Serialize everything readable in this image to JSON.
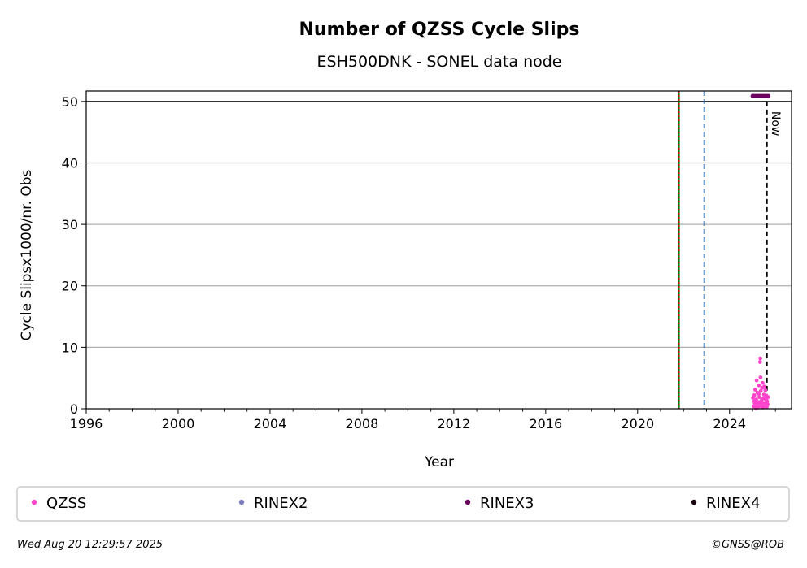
{
  "chart_data": {
    "type": "scatter",
    "title": "Number of QZSS Cycle Slips",
    "subtitle": "ESH500DNK - SONEL data node",
    "xlabel": "Year",
    "ylabel": "Cycle Slipsx1000/nr. Obs",
    "xlim": [
      1996,
      2026.7
    ],
    "ylim": [
      0,
      51.7
    ],
    "x_ticks": [
      1996,
      2000,
      2004,
      2008,
      2012,
      2016,
      2020,
      2024
    ],
    "y_ticks": [
      0,
      10,
      20,
      30,
      40,
      50
    ],
    "grid": "horizontal",
    "ceiling_line": 50,
    "vertical_lines": [
      {
        "x": 2021.8,
        "color": "#008000",
        "style": "solid"
      },
      {
        "x": 2021.8,
        "color": "#cc0000",
        "style": "dotted"
      },
      {
        "x": 2022.9,
        "color": "#1f5fa0",
        "style": "dashed"
      },
      {
        "x": 2025.63,
        "color": "#000000",
        "style": "dashed",
        "label": "Now"
      }
    ],
    "series": [
      {
        "name": "QZSS",
        "color": "#ff44cc",
        "points": [
          [
            2025.02,
            1.8
          ],
          [
            2025.05,
            0.4
          ],
          [
            2025.08,
            2.2
          ],
          [
            2025.1,
            0.9
          ],
          [
            2025.12,
            3.1
          ],
          [
            2025.14,
            0.3
          ],
          [
            2025.16,
            1.5
          ],
          [
            2025.18,
            4.6
          ],
          [
            2025.2,
            0.7
          ],
          [
            2025.22,
            2.6
          ],
          [
            2025.24,
            1.1
          ],
          [
            2025.26,
            0.2
          ],
          [
            2025.28,
            3.8
          ],
          [
            2025.3,
            1.9
          ],
          [
            2025.32,
            0.5
          ],
          [
            2025.33,
            7.6
          ],
          [
            2025.34,
            8.2
          ],
          [
            2025.35,
            5.1
          ],
          [
            2025.36,
            2.9
          ],
          [
            2025.38,
            1.3
          ],
          [
            2025.4,
            0.6
          ],
          [
            2025.42,
            3.4
          ],
          [
            2025.44,
            4.2
          ],
          [
            2025.46,
            1.7
          ],
          [
            2025.48,
            0.8
          ],
          [
            2025.5,
            2.3
          ],
          [
            2025.52,
            0.4
          ],
          [
            2025.54,
            1.6
          ],
          [
            2025.56,
            3.0
          ],
          [
            2025.58,
            0.9
          ],
          [
            2025.6,
            2.1
          ],
          [
            2025.62,
            0.3
          ],
          [
            2025.64,
            1.2
          ],
          [
            2025.66,
            0.7
          ],
          [
            2025.68,
            1.9
          ],
          [
            2025.15,
            0.1
          ],
          [
            2025.25,
            0.6
          ],
          [
            2025.35,
            0.9
          ],
          [
            2025.45,
            0.2
          ],
          [
            2025.55,
            0.5
          ],
          [
            2025.07,
            1.2
          ],
          [
            2025.27,
            2.4
          ],
          [
            2025.41,
            1.0
          ],
          [
            2025.51,
            3.6
          ],
          [
            2025.61,
            1.4
          ]
        ]
      },
      {
        "name": "RINEX2",
        "color": "#7b7bbf",
        "points": []
      },
      {
        "name": "RINEX3",
        "color": "#6a005f",
        "points": [
          [
            2025.0,
            50.9
          ],
          [
            2025.05,
            50.9
          ],
          [
            2025.1,
            50.9
          ],
          [
            2025.15,
            50.9
          ],
          [
            2025.2,
            50.9
          ],
          [
            2025.25,
            50.9
          ],
          [
            2025.3,
            50.9
          ],
          [
            2025.35,
            50.9
          ],
          [
            2025.4,
            50.9
          ],
          [
            2025.45,
            50.9
          ],
          [
            2025.5,
            50.9
          ],
          [
            2025.55,
            50.9
          ],
          [
            2025.6,
            50.9
          ],
          [
            2025.65,
            50.9
          ],
          [
            2025.7,
            50.9
          ]
        ]
      },
      {
        "name": "RINEX4",
        "color": "#1a0010",
        "points": []
      }
    ],
    "legend": "bottom",
    "footer_left": "Wed Aug 20 12:29:57 2025",
    "footer_right": "©GNSS@ROB"
  }
}
